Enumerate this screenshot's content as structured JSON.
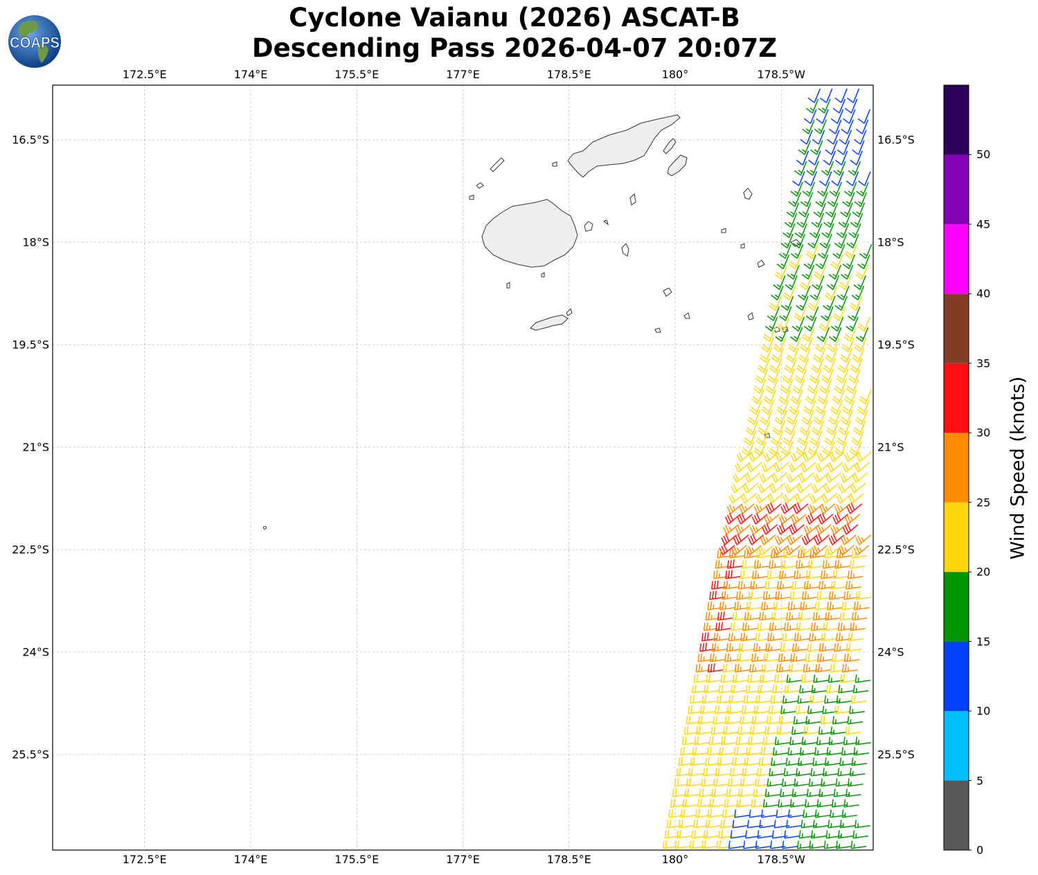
{
  "title": {
    "line1": "Cyclone Vaianu (2026) ASCAT-B",
    "line2": "Descending Pass 2026-04-07 20:07Z"
  },
  "logo": {
    "text": "COAPS",
    "ocean_color": "#1f5fae",
    "land_color": "#5c8a3c"
  },
  "map": {
    "projection": "PlateCarree",
    "lon_range": [
      171.2,
      182.8
    ],
    "lat_range": [
      -26.9,
      -15.7
    ],
    "gridlines": true,
    "lon_ticks": [
      {
        "value": 172.5,
        "label": "172.5°E"
      },
      {
        "value": 174.0,
        "label": "174°E"
      },
      {
        "value": 175.5,
        "label": "175.5°E"
      },
      {
        "value": 177.0,
        "label": "177°E"
      },
      {
        "value": 178.5,
        "label": "178.5°E"
      },
      {
        "value": 180.0,
        "label": "180°"
      },
      {
        "value": 181.5,
        "label": "178.5°W"
      }
    ],
    "lat_ticks": [
      {
        "value": -16.5,
        "label": "16.5°S"
      },
      {
        "value": -18.0,
        "label": "18°S"
      },
      {
        "value": -19.5,
        "label": "19.5°S"
      },
      {
        "value": -21.0,
        "label": "21°S"
      },
      {
        "value": -22.5,
        "label": "22.5°S"
      },
      {
        "value": -24.0,
        "label": "24°S"
      },
      {
        "value": -25.5,
        "label": "25.5°S"
      }
    ],
    "swath": "ASCAT-B descending pass on the east edge of the map; wind barbs coloured by speed"
  },
  "colorbar": {
    "label": "Wind Speed (knots)",
    "ticks": [
      "0",
      "5",
      "10",
      "15",
      "20",
      "25",
      "30",
      "35",
      "40",
      "45",
      "50"
    ],
    "bins": [
      {
        "min": 0,
        "max": 5,
        "color": "#595959"
      },
      {
        "min": 5,
        "max": 10,
        "color": "#00bfff"
      },
      {
        "min": 10,
        "max": 15,
        "color": "#0040ff"
      },
      {
        "min": 15,
        "max": 20,
        "color": "#009500"
      },
      {
        "min": 20,
        "max": 25,
        "color": "#ffd70f"
      },
      {
        "min": 25,
        "max": 30,
        "color": "#ff8c00"
      },
      {
        "min": 30,
        "max": 35,
        "color": "#ff0f0f"
      },
      {
        "min": 35,
        "max": 40,
        "color": "#823d26"
      },
      {
        "min": 40,
        "max": 45,
        "color": "#ff00ff"
      },
      {
        "min": 45,
        "max": 50,
        "color": "#8400b3"
      },
      {
        "min": 50,
        "max": 55,
        "color": "#2d0059"
      }
    ]
  }
}
